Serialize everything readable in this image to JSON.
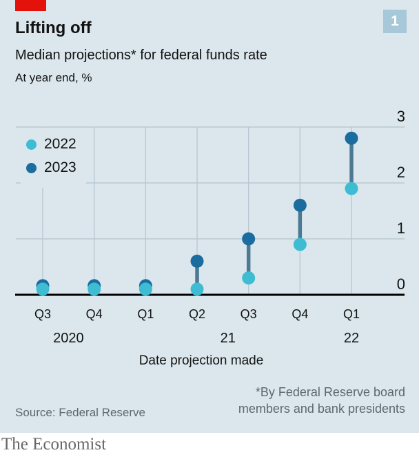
{
  "page": {
    "brand": "The Economist",
    "figure_number": "1"
  },
  "header": {
    "title": "Lifting off",
    "subtitle": "Median projections* for federal funds rate",
    "unit_note": "At year end, %"
  },
  "footer": {
    "source": "Source: Federal Reserve",
    "footnote_line1": "*By Federal Reserve board",
    "footnote_line2": "members and bank presidents"
  },
  "colors": {
    "panel_bg": "#dbe7ed",
    "accent_red": "#e3120b",
    "badge_blue": "#a7c8d9",
    "grid": "#b9c8d2",
    "axis_black": "#000000",
    "text_dark": "#121212",
    "muted_text": "#5b686f",
    "brand_gray": "#666666"
  },
  "chart_data": {
    "type": "scatter",
    "title": "Lifting off",
    "subtitle": "Median projections* for federal funds rate",
    "unit": "At year end, %",
    "categories": [
      "Q3",
      "Q4",
      "Q1",
      "Q2",
      "Q3",
      "Q4",
      "Q1"
    ],
    "year_labels": [
      {
        "label": "2020",
        "index": 0.5
      },
      {
        "label": "21",
        "index": 3.6
      },
      {
        "label": "22",
        "index": 6
      }
    ],
    "series": [
      {
        "name": "2022",
        "color": "#3ebcd2",
        "values": [
          0.1,
          0.1,
          0.1,
          0.1,
          0.3,
          0.9,
          1.9
        ]
      },
      {
        "name": "2023",
        "color": "#1a6d9e",
        "values": [
          0.1,
          0.1,
          0.1,
          0.6,
          1.0,
          1.6,
          2.8
        ]
      }
    ],
    "connector_color": "#4c7a92",
    "xlabel": "Date projection made",
    "ylabel": "",
    "ylim": [
      0,
      3
    ],
    "yticks": [
      0,
      1,
      2,
      3
    ],
    "legend_position": "top-left",
    "grid": true
  }
}
